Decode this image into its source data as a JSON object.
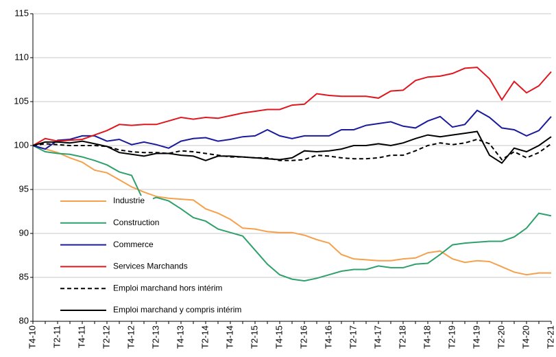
{
  "chart_data": {
    "type": "line",
    "categories": [
      "T4-10",
      null,
      "T2-11",
      null,
      "T4-11",
      null,
      "T2-12",
      null,
      "T4-12",
      null,
      "T2-13",
      null,
      "T4-13",
      null,
      "T2-14",
      null,
      "T4-14",
      null,
      "T2-15",
      null,
      "T4-15",
      null,
      "T2-16",
      null,
      "T4-16",
      null,
      "T2-17",
      null,
      "T4-17",
      null,
      "T2-18",
      null,
      "T4-18",
      null,
      "T2-19",
      null,
      "T4-19",
      null,
      "T2-20",
      null,
      "T4-20",
      null,
      "T2-21"
    ],
    "ylim": [
      80,
      115
    ],
    "yticks": [
      80,
      85,
      90,
      95,
      100,
      105,
      110,
      115
    ],
    "grid": true,
    "series": [
      {
        "name": "Industrie",
        "color": "#f7a04b",
        "style": "solid",
        "values": [
          100,
          99.6,
          99.2,
          98.6,
          98.1,
          97.2,
          96.9,
          96.1,
          95.3,
          94.7,
          94.2,
          94.0,
          93.9,
          93.8,
          92.8,
          92.3,
          91.6,
          90.6,
          90.5,
          90.2,
          90.1,
          90.1,
          89.8,
          89.3,
          88.9,
          87.6,
          87.1,
          87.0,
          86.9,
          86.9,
          87.1,
          87.2,
          87.8,
          88.0,
          87.1,
          86.7,
          86.9,
          86.8,
          86.2,
          85.6,
          85.3,
          85.5,
          85.5
        ]
      },
      {
        "name": "Construction",
        "color": "#2ea06b",
        "style": "solid",
        "values": [
          100,
          99.3,
          99.1,
          99.0,
          98.7,
          98.3,
          97.8,
          97.0,
          96.6,
          93.6,
          94.1,
          93.7,
          92.8,
          91.8,
          91.4,
          90.5,
          90.1,
          89.7,
          88.1,
          86.5,
          85.3,
          84.8,
          84.6,
          84.9,
          85.3,
          85.7,
          85.9,
          85.9,
          86.3,
          86.1,
          86.1,
          86.5,
          86.6,
          87.6,
          88.7,
          88.9,
          89.0,
          89.1,
          89.1,
          89.6,
          90.6,
          92.3,
          92.0
        ]
      },
      {
        "name": "Commerce",
        "color": "#1a1a9c",
        "style": "solid",
        "values": [
          100,
          99.6,
          100.6,
          100.7,
          101.1,
          101.1,
          100.5,
          100.7,
          100.1,
          100.4,
          100.1,
          99.7,
          100.5,
          100.8,
          100.9,
          100.5,
          100.7,
          101.0,
          101.1,
          101.8,
          101.1,
          100.8,
          101.1,
          101.1,
          101.1,
          101.8,
          101.8,
          102.3,
          102.5,
          102.7,
          102.2,
          102.0,
          102.8,
          103.3,
          102.1,
          102.4,
          104.0,
          103.2,
          102.0,
          101.8,
          101.1,
          101.7,
          103.3
        ]
      },
      {
        "name": "Services Marchands",
        "color": "#e0161e",
        "style": "solid",
        "values": [
          100,
          100.8,
          100.5,
          100.6,
          100.7,
          101.2,
          101.7,
          102.4,
          102.3,
          102.4,
          102.4,
          102.8,
          103.2,
          103.0,
          103.2,
          103.1,
          103.4,
          103.7,
          103.9,
          104.1,
          104.1,
          104.6,
          104.7,
          105.9,
          105.7,
          105.6,
          105.6,
          105.6,
          105.4,
          106.2,
          106.3,
          107.4,
          107.8,
          107.9,
          108.2,
          108.8,
          108.9,
          107.6,
          105.2,
          107.3,
          106.0,
          106.8,
          108.4
        ]
      },
      {
        "name": "Emploi marchand hors intérim",
        "color": "#000000",
        "style": "dashed",
        "values": [
          100,
          100.2,
          100.1,
          100.0,
          100.0,
          100.0,
          99.9,
          99.5,
          99.3,
          99.2,
          99.2,
          99.1,
          99.4,
          99.3,
          99.1,
          98.9,
          98.7,
          98.7,
          98.6,
          98.6,
          98.3,
          98.3,
          98.4,
          98.9,
          98.8,
          98.6,
          98.5,
          98.5,
          98.6,
          98.9,
          98.9,
          99.4,
          100.0,
          100.3,
          100.1,
          100.3,
          100.7,
          100.2,
          98.4,
          99.3,
          98.6,
          99.2,
          100.2
        ]
      },
      {
        "name": "Emploi marchand y compris intérim",
        "color": "#000000",
        "style": "solid",
        "values": [
          100,
          100.4,
          100.4,
          100.3,
          100.5,
          100.2,
          99.9,
          99.2,
          99.0,
          98.8,
          99.1,
          99.1,
          98.9,
          98.8,
          98.3,
          98.8,
          98.8,
          98.7,
          98.6,
          98.5,
          98.4,
          98.6,
          99.4,
          99.3,
          99.4,
          99.6,
          100.0,
          100.0,
          100.2,
          100.0,
          100.3,
          100.8,
          101.2,
          101.0,
          101.2,
          101.4,
          101.6,
          98.9,
          98.0,
          99.7,
          99.3,
          100.0,
          101.0
        ]
      }
    ]
  }
}
